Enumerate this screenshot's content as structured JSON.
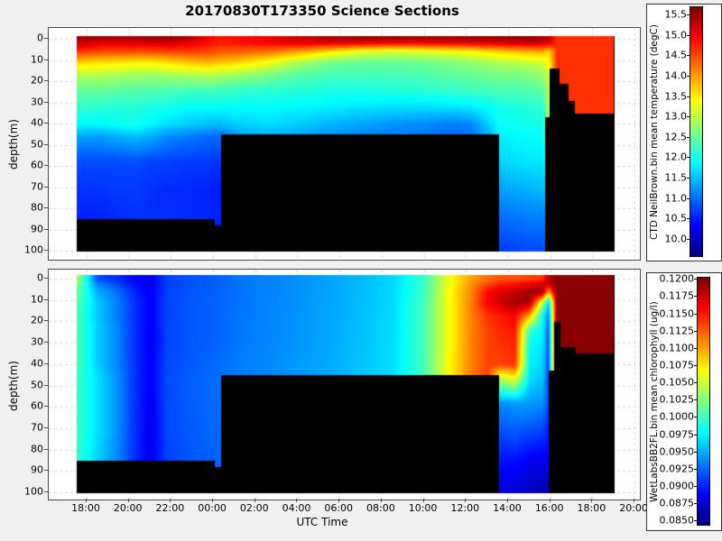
{
  "title": "20170830T173350 Science Sections",
  "figure": {
    "background": "#f0f0f0",
    "axes_background": "#ffffff",
    "grid_color": "#d8d8d8",
    "frame_color": "#4d4d4d",
    "no_data_color": "#000000"
  },
  "x_axis": {
    "label": "UTC Time",
    "tick_labels": [
      "18:00",
      "20:00",
      "22:00",
      "00:00",
      "02:00",
      "04:00",
      "06:00",
      "08:00",
      "10:00",
      "12:00",
      "14:00",
      "16:00",
      "18:00",
      "20:00"
    ],
    "tick_hours_rel_1800utc": [
      0,
      2,
      4,
      6,
      8,
      10,
      12,
      14,
      16,
      18,
      20,
      22,
      24,
      26
    ]
  },
  "y_axis": {
    "label": "depth(m)",
    "ticks": [
      0,
      10,
      20,
      30,
      40,
      50,
      60,
      70,
      80,
      90,
      100
    ]
  },
  "colorbars": [
    {
      "label": "CTD NeilBrown.bin mean temperature (degC)",
      "tick_labels": [
        "15.5",
        "15.0",
        "14.5",
        "14.0",
        "13.5",
        "13.0",
        "12.5",
        "12.0",
        "11.5",
        "11.0",
        "10.5",
        "10.0"
      ],
      "vmin": 9.6,
      "vmax": 15.7,
      "colormap": "jet"
    },
    {
      "label": "WetLabsBB2FL.bin mean chlorophyll (ug/l)",
      "tick_labels": [
        "0.1200",
        "0.1175",
        "0.1150",
        "0.1125",
        "0.1100",
        "0.1075",
        "0.1050",
        "0.1025",
        "0.1000",
        "0.0975",
        "0.0950",
        "0.0925",
        "0.0900",
        "0.0875",
        "0.0850"
      ],
      "vmin": 0.0845,
      "vmax": 0.1203,
      "colormap": "jet"
    }
  ],
  "chart_data": [
    {
      "type": "heatmap",
      "name": "CTD NeilBrown.bin mean temperature",
      "units": "degC",
      "vmin": 9.6,
      "vmax": 15.7,
      "time_extent_hours_rel_1800utc": [
        -0.51,
        25.05
      ],
      "depth_extent_m": [
        -1.7,
        100.4
      ],
      "time_hours": [
        -0.45,
        0.5,
        1.4,
        2.3,
        3.0,
        3.8,
        4.8,
        5.8,
        6.3,
        7.2,
        8.5,
        10.0,
        11.5,
        13.0,
        14.5,
        16.0,
        17.2,
        18.2,
        19.0,
        19.6,
        20.3,
        21.0,
        21.6,
        21.9,
        22.3,
        23.2,
        24.2,
        24.95
      ],
      "depth_m": [
        0,
        2,
        6,
        11,
        17,
        24,
        32,
        40,
        46,
        58,
        72,
        85,
        100
      ],
      "no_data_below_segments": [
        [
          -0.51,
          6.05,
          85
        ],
        [
          6.05,
          6.35,
          88
        ],
        [
          6.35,
          19.57,
          45
        ],
        [
          19.57,
          21.72,
          100
        ],
        [
          21.72,
          21.95,
          37
        ],
        [
          21.95,
          22.4,
          14
        ],
        [
          22.4,
          22.87,
          21
        ],
        [
          22.87,
          23.17,
          29
        ],
        [
          23.17,
          24.97,
          35
        ]
      ],
      "values": [
        [
          15.5,
          15.25,
          14.6,
          13.65,
          12.95,
          12.5,
          12.2,
          11.9,
          11.35,
          10.8,
          10.65,
          10.55,
          10.5
        ],
        [
          15.45,
          15.1,
          14.5,
          13.6,
          12.95,
          12.5,
          12.15,
          11.85,
          11.3,
          10.8,
          10.65,
          10.55,
          10.5
        ],
        [
          15.4,
          15.05,
          14.45,
          13.55,
          12.9,
          12.45,
          12.1,
          11.95,
          11.4,
          10.8,
          10.7,
          10.6,
          10.5
        ],
        [
          15.45,
          15.1,
          14.45,
          13.5,
          12.85,
          12.4,
          12.1,
          12.0,
          11.5,
          10.8,
          10.7,
          10.65,
          10.55
        ],
        [
          15.5,
          15.15,
          14.45,
          13.5,
          12.8,
          12.4,
          12.05,
          11.85,
          11.4,
          10.75,
          10.65,
          10.65,
          10.55
        ],
        [
          15.5,
          15.15,
          14.5,
          13.6,
          12.85,
          12.35,
          12.0,
          11.7,
          11.2,
          10.75,
          10.6,
          10.65,
          10.55
        ],
        [
          15.4,
          15.05,
          14.55,
          13.75,
          12.9,
          12.3,
          11.9,
          11.6,
          11.1,
          10.7,
          10.6,
          10.6,
          10.5
        ],
        [
          14.95,
          14.85,
          14.5,
          13.85,
          12.95,
          12.3,
          11.9,
          11.5,
          11.0,
          10.7,
          10.55,
          10.6,
          10.5
        ],
        [
          14.85,
          14.75,
          14.4,
          13.75,
          12.9,
          12.25,
          11.9,
          11.5,
          11.0,
          10.65,
          10.5,
          10.55,
          10.45
        ],
        [
          14.9,
          14.8,
          14.35,
          13.65,
          12.8,
          12.2,
          11.9,
          11.6,
          11.3,
          10.9,
          10.7,
          10.6,
          10.5
        ],
        [
          15.0,
          14.9,
          14.25,
          13.35,
          12.65,
          12.15,
          11.9,
          11.7,
          11.4,
          11.0,
          10.8,
          10.7,
          10.6
        ],
        [
          15.2,
          15.0,
          13.95,
          12.9,
          12.4,
          12.1,
          11.85,
          11.6,
          11.3,
          11.0,
          10.8,
          10.7,
          10.6
        ],
        [
          15.4,
          15.0,
          13.55,
          12.6,
          12.3,
          12.05,
          11.8,
          11.45,
          11.2,
          11.0,
          10.8,
          10.7,
          10.6
        ],
        [
          15.5,
          14.9,
          13.2,
          12.5,
          12.3,
          12.05,
          11.75,
          11.35,
          11.15,
          11.0,
          10.8,
          10.7,
          10.6
        ],
        [
          15.5,
          14.8,
          13.1,
          12.5,
          12.3,
          12.1,
          11.7,
          11.25,
          11.1,
          11.0,
          10.8,
          10.7,
          10.6
        ],
        [
          15.45,
          14.85,
          13.2,
          12.55,
          12.35,
          12.15,
          11.7,
          11.2,
          11.05,
          11.0,
          10.8,
          10.7,
          10.6
        ],
        [
          15.45,
          14.9,
          13.3,
          12.65,
          12.45,
          12.2,
          11.75,
          11.1,
          11.0,
          11.0,
          10.8,
          10.7,
          10.6
        ],
        [
          15.5,
          14.95,
          13.4,
          12.75,
          12.5,
          12.25,
          11.8,
          11.15,
          11.05,
          11.0,
          10.8,
          10.7,
          10.6
        ],
        [
          15.5,
          15.0,
          13.55,
          12.85,
          12.55,
          12.3,
          11.9,
          11.6,
          11.3,
          11.1,
          10.9,
          10.75,
          10.65
        ],
        [
          15.5,
          15.05,
          13.65,
          12.95,
          12.6,
          12.35,
          12.0,
          11.95,
          11.8,
          11.65,
          11.3,
          11.0,
          10.7
        ],
        [
          15.55,
          15.1,
          13.75,
          13.0,
          12.6,
          12.35,
          12.05,
          11.95,
          11.85,
          11.7,
          11.35,
          11.05,
          10.75
        ],
        [
          15.55,
          15.15,
          13.85,
          13.05,
          12.65,
          12.4,
          12.1,
          12.0,
          11.9,
          11.75,
          11.4,
          11.1,
          10.8
        ],
        [
          15.45,
          15.1,
          13.9,
          13.15,
          12.75,
          12.45,
          12.15,
          12.0,
          11.9,
          11.75,
          11.45,
          11.1,
          10.8
        ],
        [
          15.35,
          14.95,
          13.6,
          13.35,
          13.1,
          12.95,
          12.85,
          12.75,
          12.6,
          12.0,
          11.6,
          11.2,
          10.85
        ],
        [
          14.65,
          14.65,
          14.65,
          14.65,
          14.65,
          14.65,
          14.65,
          14.65,
          14.65,
          14.65,
          14.65,
          14.65,
          14.65
        ],
        [
          14.65,
          14.65,
          14.65,
          14.65,
          14.65,
          14.65,
          14.65,
          14.65,
          14.65,
          14.65,
          14.65,
          14.65,
          14.65
        ],
        [
          14.65,
          14.65,
          14.65,
          14.65,
          14.65,
          14.65,
          14.65,
          14.65,
          14.65,
          14.65,
          14.65,
          14.65,
          14.65
        ],
        [
          14.65,
          14.65,
          14.65,
          14.65,
          14.65,
          14.65,
          14.65,
          14.65,
          14.65,
          14.65,
          14.65,
          14.65,
          14.65
        ]
      ]
    },
    {
      "type": "heatmap",
      "name": "WetLabsBB2FL.bin mean chlorophyll",
      "units": "ug/l",
      "vmin": 0.0845,
      "vmax": 0.1203,
      "time_extent_hours_rel_1800utc": [
        -0.51,
        25.05
      ],
      "depth_extent_m": [
        -1.7,
        100.4
      ],
      "time_hours": [
        -0.45,
        0.5,
        1.4,
        2.3,
        3.0,
        3.8,
        4.8,
        5.8,
        6.3,
        7.2,
        8.5,
        10.0,
        11.5,
        13.0,
        14.5,
        16.0,
        17.2,
        18.2,
        19.0,
        19.6,
        20.3,
        21.0,
        21.6,
        21.9,
        22.3,
        23.2,
        24.2,
        24.95
      ],
      "depth_m": [
        0,
        2,
        6,
        11,
        17,
        24,
        32,
        40,
        46,
        58,
        72,
        85,
        100
      ],
      "no_data_below_segments": [
        [
          -0.51,
          6.05,
          85
        ],
        [
          6.05,
          6.35,
          88
        ],
        [
          6.35,
          19.57,
          45
        ],
        [
          19.57,
          21.92,
          100
        ],
        [
          21.92,
          22.16,
          43
        ],
        [
          22.16,
          22.45,
          20
        ],
        [
          22.45,
          23.2,
          32
        ],
        [
          23.2,
          24.97,
          35
        ]
      ],
      "values": [
        [
          0.104,
          0.1025,
          0.1015,
          0.101,
          0.1005,
          0.1005,
          0.1005,
          0.1005,
          0.1,
          0.1,
          0.1,
          0.0995,
          0.099
        ],
        [
          0.0915,
          0.0935,
          0.0952,
          0.096,
          0.096,
          0.0963,
          0.0963,
          0.0963,
          0.0968,
          0.0968,
          0.0968,
          0.0963,
          0.0958
        ],
        [
          0.0905,
          0.0915,
          0.093,
          0.0935,
          0.0935,
          0.0938,
          0.0938,
          0.0938,
          0.0942,
          0.0942,
          0.0942,
          0.0938,
          0.0933
        ],
        [
          0.089,
          0.0892,
          0.09,
          0.0905,
          0.0905,
          0.0905,
          0.0905,
          0.0906,
          0.0906,
          0.0906,
          0.0905,
          0.0903,
          0.0903
        ],
        [
          0.0885,
          0.0885,
          0.0886,
          0.0888,
          0.0888,
          0.0886,
          0.0886,
          0.0888,
          0.0888,
          0.0885,
          0.0883,
          0.0885,
          0.0885
        ],
        [
          0.0912,
          0.0912,
          0.0913,
          0.0913,
          0.0913,
          0.0913,
          0.0913,
          0.0914,
          0.0915,
          0.0915,
          0.0914,
          0.0912,
          0.0912
        ],
        [
          0.0918,
          0.0918,
          0.0919,
          0.092,
          0.092,
          0.092,
          0.092,
          0.0921,
          0.0922,
          0.0922,
          0.0921,
          0.0919,
          0.0918
        ],
        [
          0.0922,
          0.0922,
          0.0923,
          0.0923,
          0.0923,
          0.0923,
          0.0924,
          0.0925,
          0.0926,
          0.0926,
          0.0925,
          0.0923,
          0.0922
        ],
        [
          0.0925,
          0.0925,
          0.0925,
          0.0925,
          0.0926,
          0.0926,
          0.0927,
          0.0928,
          0.0928,
          0.0928,
          0.0926,
          0.0924,
          0.0923
        ],
        [
          0.093,
          0.093,
          0.093,
          0.093,
          0.0931,
          0.0931,
          0.0932,
          0.0933,
          0.0933,
          0.0933,
          0.0932,
          0.093,
          0.0929
        ],
        [
          0.0935,
          0.0935,
          0.0935,
          0.0936,
          0.0936,
          0.0936,
          0.0937,
          0.0937,
          0.0937,
          0.0937,
          0.0936,
          0.0934,
          0.0933
        ],
        [
          0.094,
          0.094,
          0.0941,
          0.0941,
          0.0942,
          0.0942,
          0.0943,
          0.0944,
          0.0944,
          0.0944,
          0.0943,
          0.0941,
          0.094
        ],
        [
          0.0947,
          0.0947,
          0.0948,
          0.0948,
          0.0948,
          0.0948,
          0.0949,
          0.0949,
          0.0949,
          0.0949,
          0.0948,
          0.0946,
          0.0945
        ],
        [
          0.0955,
          0.0955,
          0.0956,
          0.0956,
          0.0957,
          0.0957,
          0.0958,
          0.0959,
          0.0959,
          0.0959,
          0.0958,
          0.0956,
          0.0955
        ],
        [
          0.0965,
          0.0965,
          0.0966,
          0.0966,
          0.0967,
          0.0967,
          0.0968,
          0.0968,
          0.0968,
          0.0968,
          0.0967,
          0.0965,
          0.0964
        ],
        [
          0.1,
          0.1,
          0.1,
          0.1005,
          0.1005,
          0.1005,
          0.1005,
          0.1005,
          0.1005,
          0.1005,
          0.1004,
          0.1002,
          0.1
        ],
        [
          0.1065,
          0.1065,
          0.1068,
          0.1068,
          0.1068,
          0.1068,
          0.1068,
          0.107,
          0.107,
          0.107,
          0.1069,
          0.1067,
          0.1065
        ],
        [
          0.11,
          0.1105,
          0.111,
          0.1112,
          0.1112,
          0.1112,
          0.1112,
          0.1112,
          0.1115,
          0.1115,
          0.1114,
          0.1112,
          0.111
        ],
        [
          0.112,
          0.113,
          0.1155,
          0.116,
          0.114,
          0.1135,
          0.1135,
          0.1135,
          0.1135,
          0.1135,
          0.1134,
          0.1132,
          0.113
        ],
        [
          0.113,
          0.1145,
          0.117,
          0.1175,
          0.115,
          0.1145,
          0.114,
          0.1135,
          0.105,
          0.094,
          0.0915,
          0.0895,
          0.0875
        ],
        [
          0.113,
          0.115,
          0.118,
          0.119,
          0.116,
          0.115,
          0.1145,
          0.114,
          0.107,
          0.0945,
          0.092,
          0.0895,
          0.0875
        ],
        [
          0.1135,
          0.116,
          0.1195,
          0.119,
          0.11,
          0.1,
          0.098,
          0.0975,
          0.097,
          0.0945,
          0.0915,
          0.0885,
          0.0865
        ],
        [
          0.114,
          0.117,
          0.1195,
          0.105,
          0.0985,
          0.0975,
          0.097,
          0.0965,
          0.096,
          0.094,
          0.091,
          0.0885,
          0.086
        ],
        [
          0.118,
          0.1185,
          0.11,
          0.096,
          0.0935,
          0.0925,
          0.092,
          0.0915,
          0.0915,
          0.0915,
          0.09,
          0.0885,
          0.086
        ],
        [
          0.12,
          0.12,
          0.12,
          0.12,
          0.12,
          0.12,
          0.12,
          0.12,
          0.12,
          0.12,
          0.12,
          0.12,
          0.12
        ],
        [
          0.12,
          0.12,
          0.12,
          0.12,
          0.12,
          0.12,
          0.12,
          0.12,
          0.12,
          0.12,
          0.12,
          0.12,
          0.12
        ],
        [
          0.12,
          0.12,
          0.12,
          0.12,
          0.12,
          0.12,
          0.12,
          0.12,
          0.12,
          0.12,
          0.12,
          0.12,
          0.12
        ],
        [
          0.12,
          0.12,
          0.12,
          0.12,
          0.12,
          0.12,
          0.12,
          0.12,
          0.12,
          0.12,
          0.12,
          0.12,
          0.12
        ]
      ]
    }
  ]
}
